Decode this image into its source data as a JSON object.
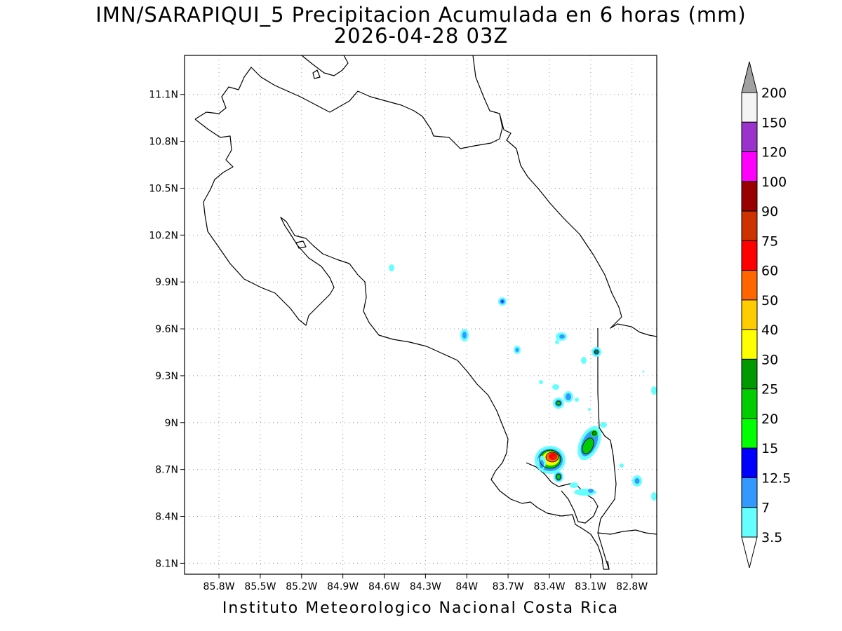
{
  "title": {
    "line1": "IMN/SARAPIQUI_5 Precipitacion Acumulada en 6 horas (mm)",
    "line2": "2026-04-28 03Z"
  },
  "footer": "Instituto Meteorologico Nacional Costa Rica",
  "map": {
    "lon_range": [
      -86.05,
      -82.62
    ],
    "lat_range": [
      8.03,
      11.35
    ],
    "x_ticks": [
      "85.8W",
      "85.5W",
      "85.2W",
      "84.9W",
      "84.6W",
      "84.3W",
      "84W",
      "83.7W",
      "83.4W",
      "83.1W",
      "82.8W"
    ],
    "x_tick_values": [
      -85.8,
      -85.5,
      -85.2,
      -84.9,
      -84.6,
      -84.3,
      -84.0,
      -83.7,
      -83.4,
      -83.1,
      -82.8
    ],
    "y_ticks": [
      "11.1N",
      "10.8N",
      "10.5N",
      "10.2N",
      "9.9N",
      "9.6N",
      "9.3N",
      "9N",
      "8.7N",
      "8.4N",
      "8.1N"
    ],
    "y_tick_values": [
      11.1,
      10.8,
      10.5,
      10.2,
      9.9,
      9.6,
      9.3,
      9.0,
      8.7,
      8.4,
      8.1
    ],
    "grid": true
  },
  "legend": {
    "labels": [
      "200",
      "150",
      "120",
      "100",
      "90",
      "75",
      "60",
      "50",
      "40",
      "30",
      "25",
      "20",
      "15",
      "12.5",
      "7",
      "3.5"
    ],
    "colors": [
      "#f4f4f4",
      "#9933cc",
      "#ff00ff",
      "#990000",
      "#cc3300",
      "#ff0000",
      "#ff6600",
      "#ffcc00",
      "#ffff00",
      "#009900",
      "#00cc00",
      "#00ff00",
      "#0000ff",
      "#3399ff",
      "#66ffff"
    ],
    "over_color": "#a0a0a0",
    "under_color": "#ffffff"
  }
}
